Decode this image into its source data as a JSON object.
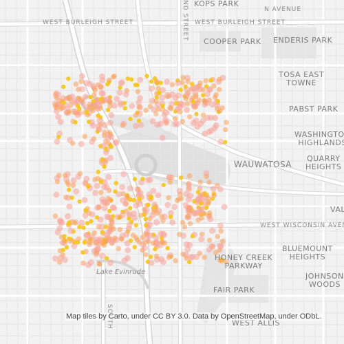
{
  "map": {
    "labels": {
      "kops_park": "KOPS PARK",
      "n_avenue": "N AVENUE",
      "w_burleigh_left": "WEST BURLEIGH STREET",
      "w_burleigh_right": "WEST BURLEIGH STREET",
      "cooper_park": "COOPER PARK",
      "enderis_park": "ENDERIS PARK",
      "tosa_east_towne": "TOSA EAST\nTOWNE",
      "pabst_park": "PABST PARK",
      "washington_highlands": "WASHINGTON\nHIGHLANDS",
      "wauwatosa": "WAUWATOSA",
      "quarry_heights": "QUARRY\nHEIGHTS",
      "valley": "VALL",
      "w_wisconsin_avenue": "WEST WISCONSIN AVENUE",
      "bluemount_heights": "BLUEMOUNT\nHEIGHTS",
      "honey_creek_parkway": "HONEY CREEK\nPARKWAY",
      "johnson_woods": "JOHNSON\nWOODS",
      "fair_park": "FAIR PARK",
      "lake_evinrude": "Lake Evinrude",
      "west_allis": "WEST ALLIS",
      "nd_street": "ND STREET",
      "south": "SOUTH"
    },
    "attribution": "Map tiles by Carto, under CC BY 3.0. Data by OpenStreetMap, under ODbL."
  },
  "colors": {
    "land": "#f2f2f2",
    "park": "#e2e2e2",
    "road": "#ffffff",
    "road_casing": "#d6d6d6",
    "heat_low": "#f7a49a",
    "heat_mid": "#f9a15a",
    "heat_high": "#f5c518"
  }
}
